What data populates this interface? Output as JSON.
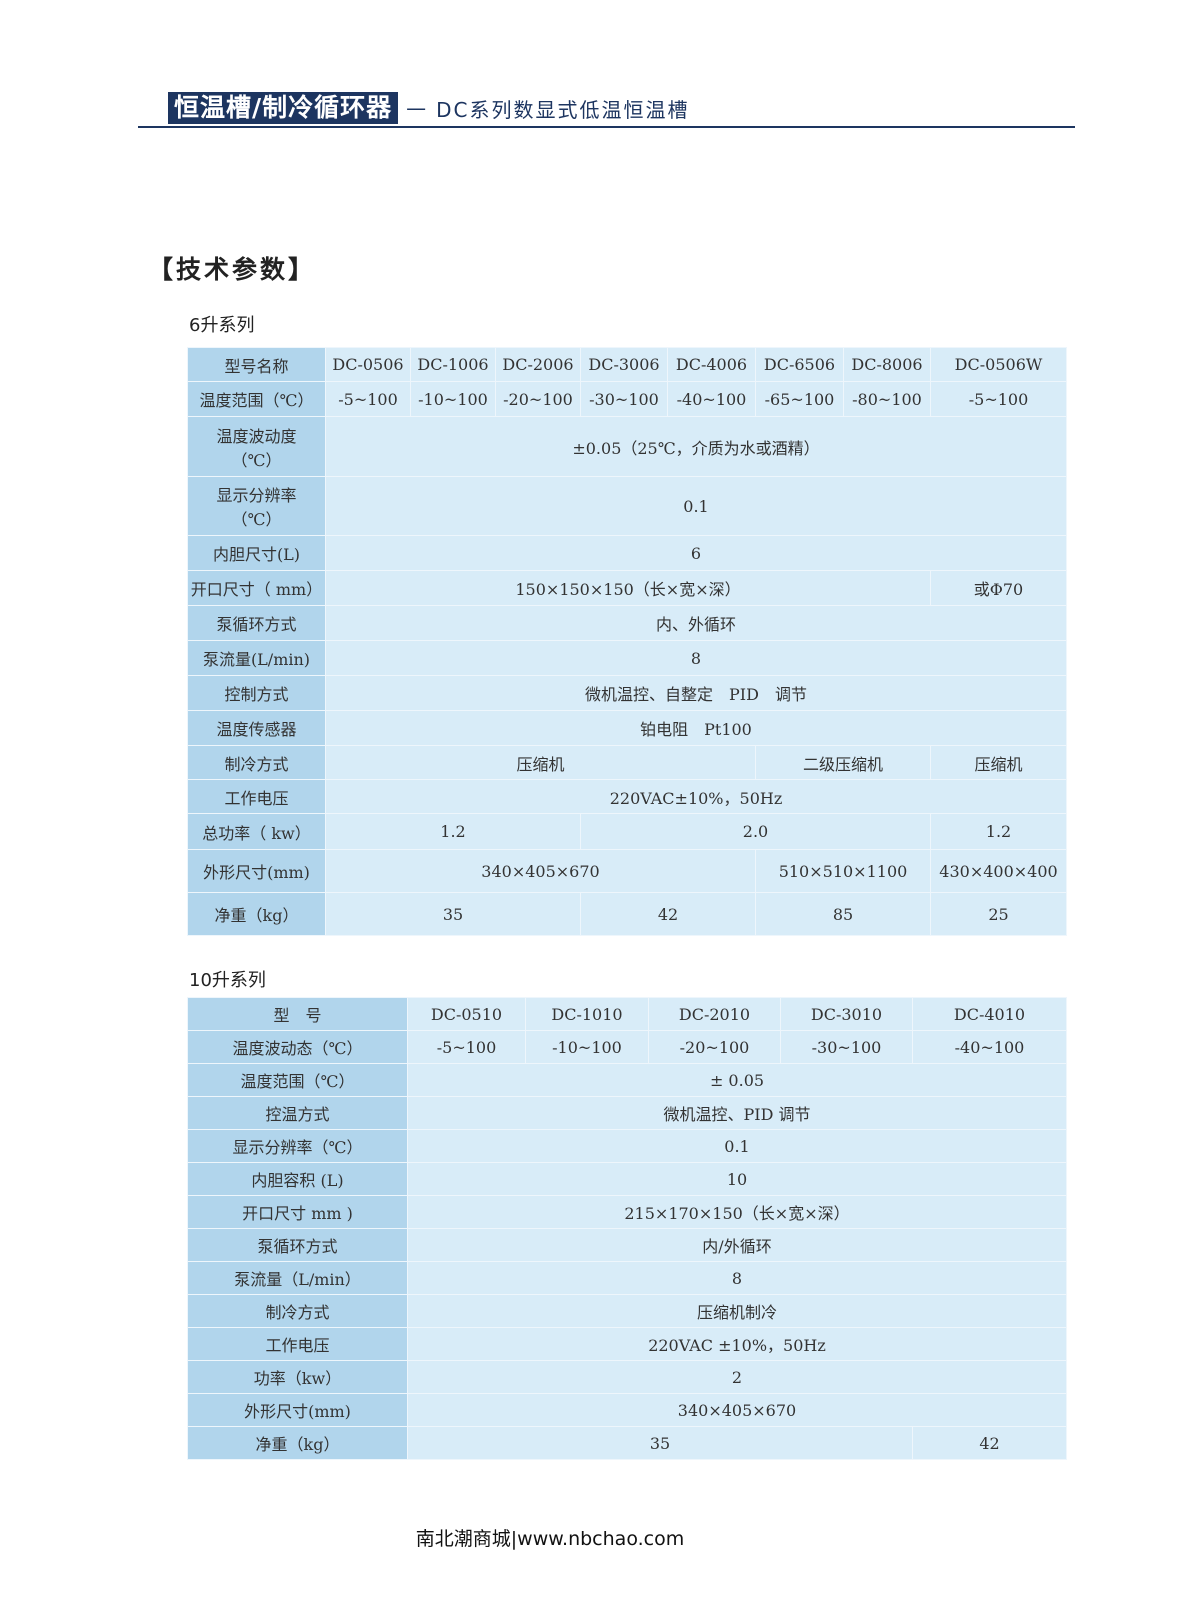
{
  "header": {
    "title": "恒温槽/制冷循环器",
    "dash": "—",
    "subtitle": "DC系列数显式低温恒温槽"
  },
  "section_title": "【技术参数】",
  "t1": {
    "title": "6升系列",
    "rows": [
      {
        "label": "型号名称",
        "cells": [
          {
            "t": "DC-0506"
          },
          {
            "t": "DC-1006"
          },
          {
            "t": "DC-2006"
          },
          {
            "t": "DC-3006"
          },
          {
            "t": "DC-4006"
          },
          {
            "t": "DC-6506"
          },
          {
            "t": "DC-8006"
          },
          {
            "t": "DC-0506W"
          }
        ]
      },
      {
        "label": "温度范围（℃）",
        "cells": [
          {
            "t": "-5~100"
          },
          {
            "t": "-10~100"
          },
          {
            "t": "-20~100"
          },
          {
            "t": "-30~100"
          },
          {
            "t": "-40~100"
          },
          {
            "t": "-65~100"
          },
          {
            "t": "-80~100"
          },
          {
            "t": "-5~100"
          }
        ]
      },
      {
        "label": "温度波动度（℃）",
        "cells": [
          {
            "t": "±0.05（25℃，介质为水或酒精）",
            "s": 8
          }
        ]
      },
      {
        "label": "显示分辨率（℃）",
        "cells": [
          {
            "t": "0.1",
            "s": 8
          }
        ]
      },
      {
        "label": "内胆尺寸(L)",
        "cells": [
          {
            "t": "6",
            "s": 8
          }
        ]
      },
      {
        "label": "开口尺寸（ mm）",
        "cells": [
          {
            "t": "150×150×150（长×宽×深）",
            "s": 7
          },
          {
            "t": "或Φ70"
          }
        ]
      },
      {
        "label": "泵循环方式",
        "cells": [
          {
            "t": "内、外循环",
            "s": 8
          }
        ]
      },
      {
        "label": "泵流量(L/min)",
        "cells": [
          {
            "t": "8",
            "s": 8
          }
        ]
      },
      {
        "label": "控制方式",
        "cells": [
          {
            "t": "微机温控、自整定　PID　调节",
            "s": 8
          }
        ]
      },
      {
        "label": "温度传感器",
        "cells": [
          {
            "t": "铂电阻　Pt100",
            "s": 8
          }
        ]
      },
      {
        "label": "制冷方式",
        "cells": [
          {
            "t": "压缩机",
            "s": 5
          },
          {
            "t": "二级压缩机",
            "s": 2
          },
          {
            "t": "压缩机"
          }
        ]
      },
      {
        "label": "工作电压",
        "cells": [
          {
            "t": "220VAC±10%，50Hz",
            "s": 8
          }
        ]
      },
      {
        "label": "总功率（ kw）",
        "cells": [
          {
            "t": "1.2",
            "s": 3
          },
          {
            "t": "2.0",
            "s": 4
          },
          {
            "t": "1.2"
          }
        ]
      },
      {
        "label": "外形尺寸(mm)",
        "cells": [
          {
            "t": "340×405×670",
            "s": 5
          },
          {
            "t": "510×510×1100",
            "s": 2
          },
          {
            "t": "430×400×400"
          }
        ]
      },
      {
        "label": "净重（kg）",
        "cells": [
          {
            "t": "35",
            "s": 3
          },
          {
            "t": "42",
            "s": 2
          },
          {
            "t": "85",
            "s": 2
          },
          {
            "t": "25"
          }
        ]
      }
    ]
  },
  "t2": {
    "title": "10升系列",
    "rows": [
      {
        "label": "型　号",
        "cells": [
          {
            "t": "DC-0510"
          },
          {
            "t": "DC-1010"
          },
          {
            "t": "DC-2010"
          },
          {
            "t": "DC-3010"
          },
          {
            "t": "DC-4010"
          }
        ]
      },
      {
        "label": "温度波动态（℃）",
        "cells": [
          {
            "t": "-5~100"
          },
          {
            "t": "-10~100"
          },
          {
            "t": "-20~100"
          },
          {
            "t": "-30~100"
          },
          {
            "t": "-40~100"
          }
        ]
      },
      {
        "label": "温度范围（℃）",
        "cells": [
          {
            "t": "± 0.05",
            "s": 5
          }
        ]
      },
      {
        "label": "控温方式",
        "cells": [
          {
            "t": "微机温控、PID 调节",
            "s": 5
          }
        ]
      },
      {
        "label": "显示分辨率（℃）",
        "cells": [
          {
            "t": "0.1",
            "s": 5
          }
        ]
      },
      {
        "label": "内胆容积 (L)",
        "cells": [
          {
            "t": "10",
            "s": 5
          }
        ]
      },
      {
        "label": "开口尺寸 mm )",
        "cells": [
          {
            "t": "215×170×150（长×宽×深）",
            "s": 5
          }
        ]
      },
      {
        "label": "泵循环方式",
        "cells": [
          {
            "t": "内/外循环",
            "s": 5
          }
        ]
      },
      {
        "label": "泵流量（L/min）",
        "cells": [
          {
            "t": "8",
            "s": 5
          }
        ]
      },
      {
        "label": "制冷方式",
        "cells": [
          {
            "t": "压缩机制冷",
            "s": 5
          }
        ]
      },
      {
        "label": "工作电压",
        "cells": [
          {
            "t": "220VAC ±10%，50Hz",
            "s": 5
          }
        ]
      },
      {
        "label": "功率（kw）",
        "cells": [
          {
            "t": "2",
            "s": 5
          }
        ]
      },
      {
        "label": "外形尺寸(mm)",
        "cells": [
          {
            "t": "340×405×670",
            "s": 5
          }
        ]
      },
      {
        "label": "净重（kg）",
        "cells": [
          {
            "t": "35",
            "s": 4
          },
          {
            "t": "42"
          }
        ]
      }
    ]
  },
  "footer": "南北潮商城|www.nbchao.com"
}
